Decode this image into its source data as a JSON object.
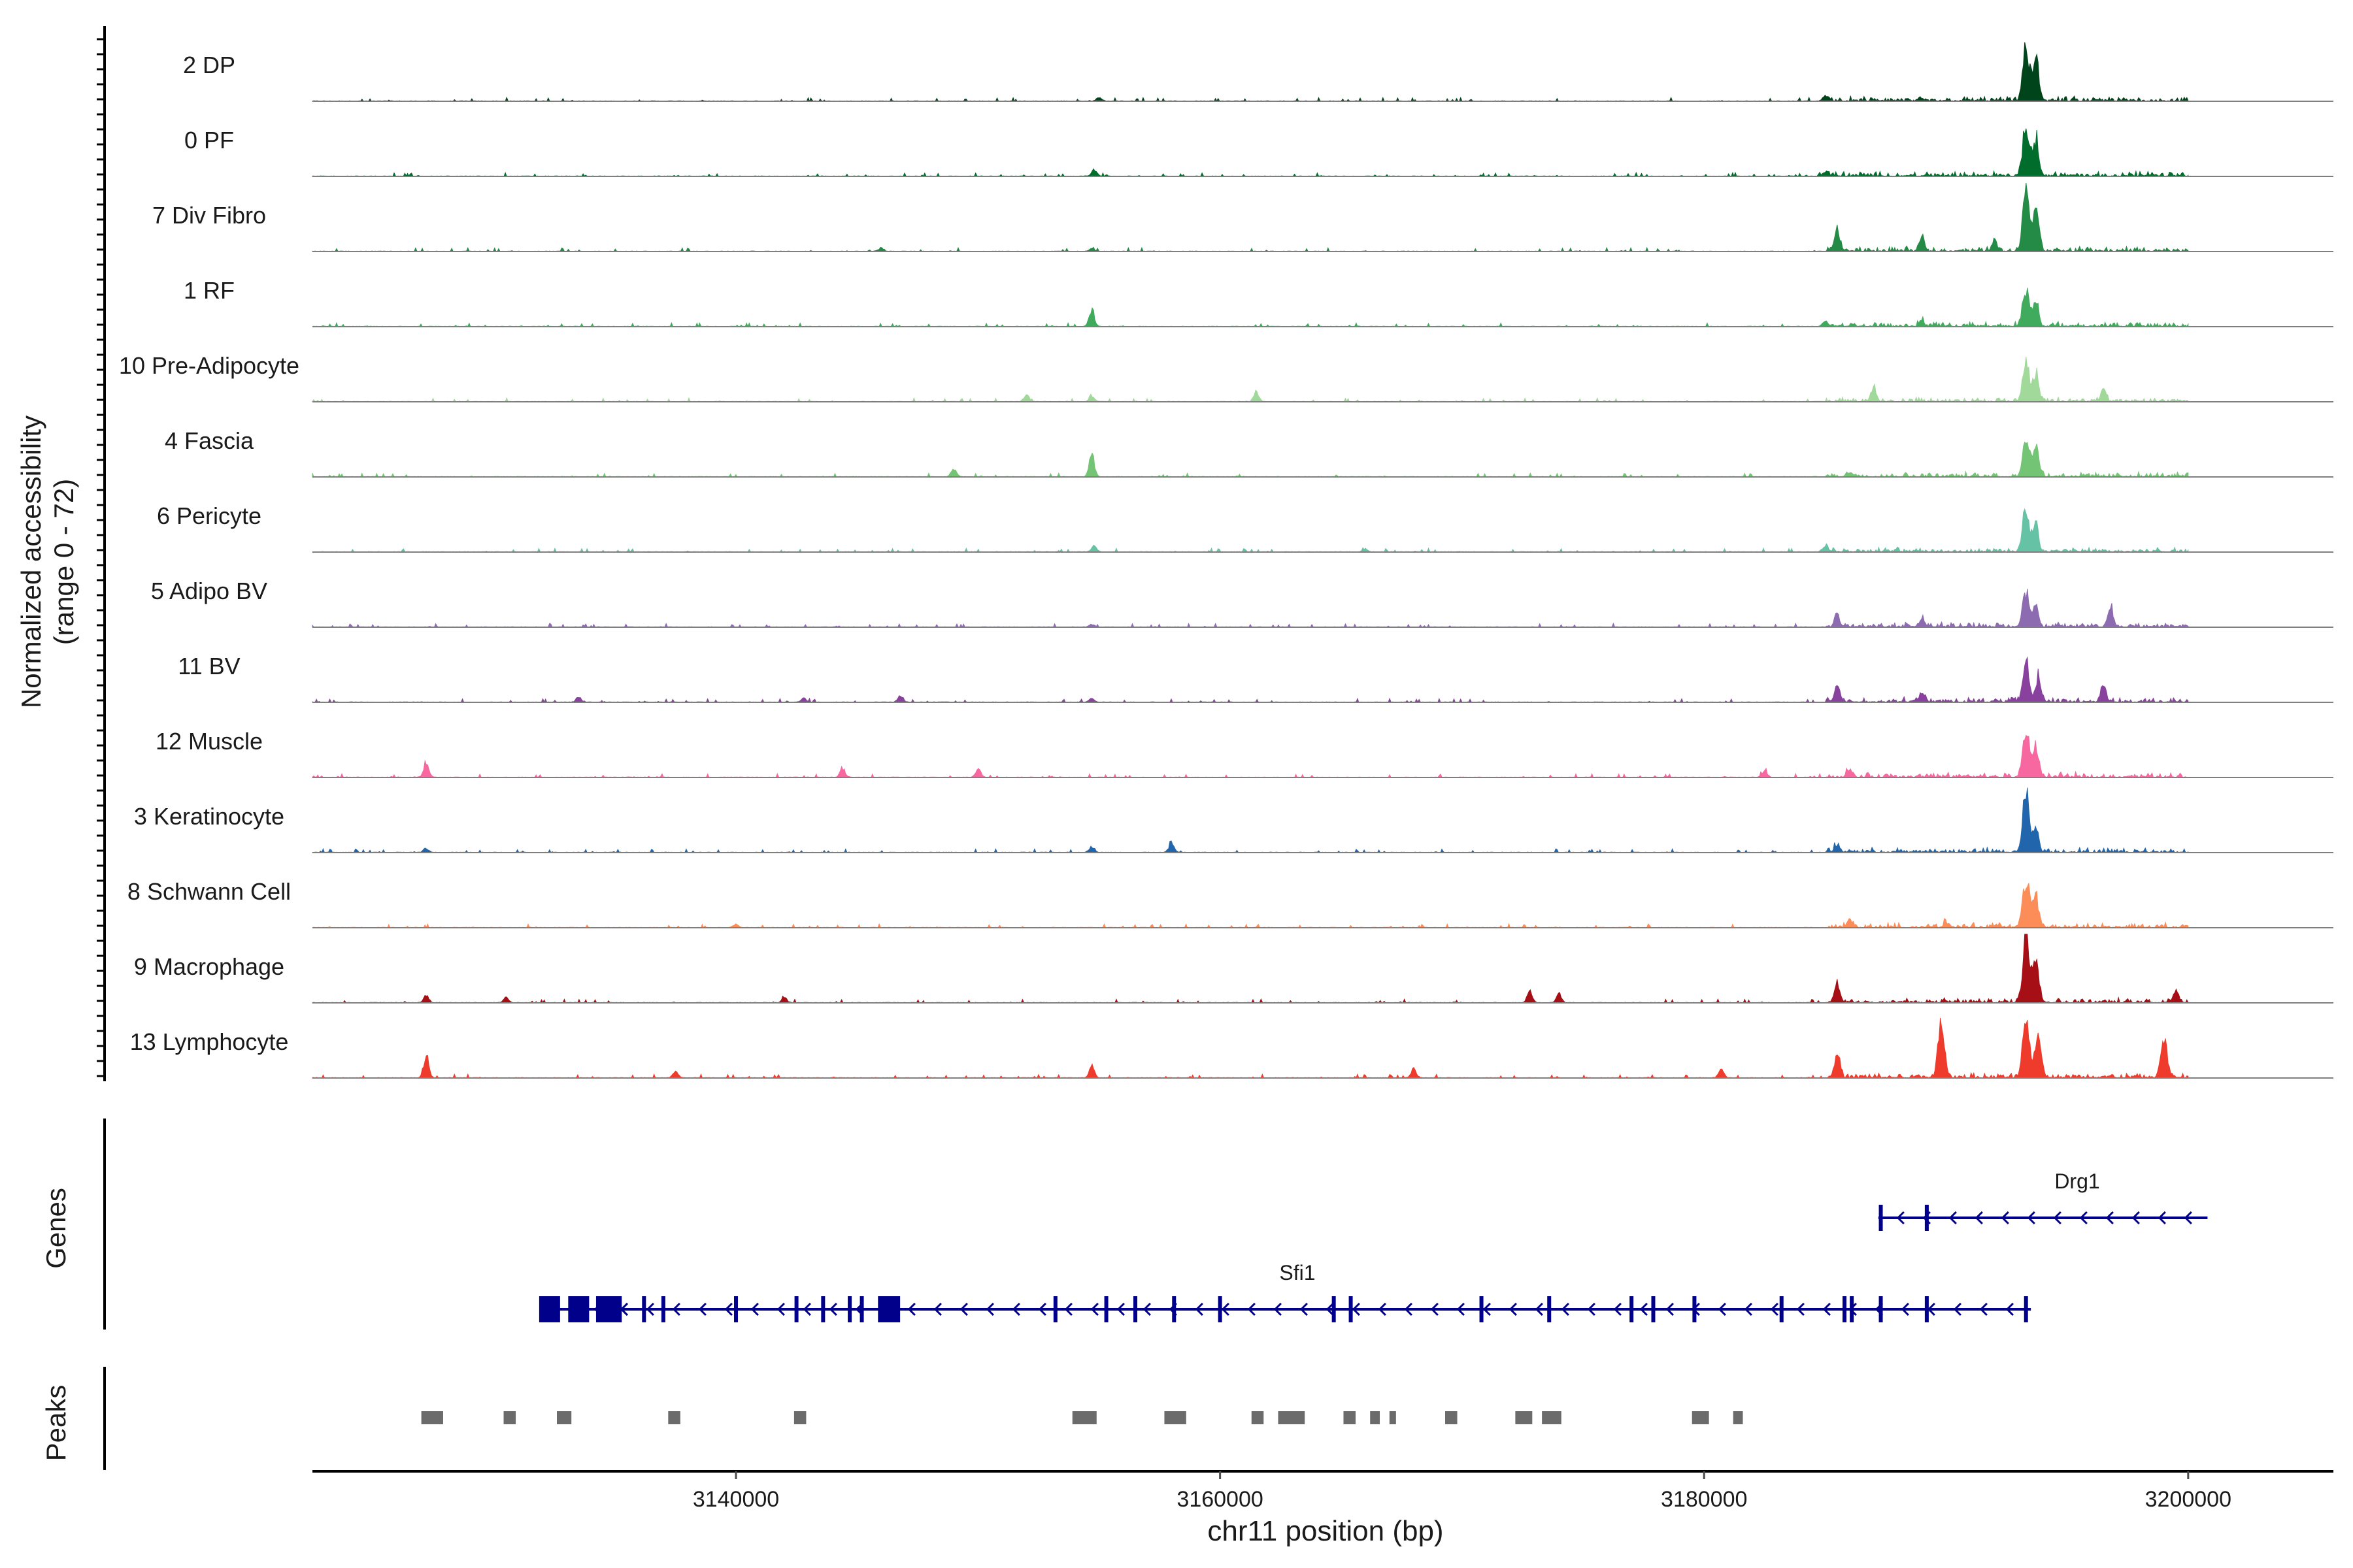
{
  "chart_data": {
    "type": "area",
    "title": "",
    "chromosome": "chr11",
    "xlabel": "chr11 position (bp)",
    "xlim": [
      3122500,
      3206000
    ],
    "x_ticks": [
      3140000,
      3160000,
      3180000,
      3200000
    ],
    "x_tick_labels": [
      "3140000",
      "3160000",
      "3180000",
      "3200000"
    ],
    "signal_start": 3122500,
    "signal_end": 3200000,
    "ylabel_line1": "Normalized accessibility",
    "ylabel_line2": "(range 0 - 72)",
    "ylim": [
      0,
      72
    ],
    "tracks": [
      {
        "name": "2 DP",
        "color": "#00441b",
        "peaks": [
          [
            3193300,
            55
          ],
          [
            3193700,
            45
          ],
          [
            3185000,
            5
          ],
          [
            3155000,
            4
          ]
        ]
      },
      {
        "name": "0 PF",
        "color": "#006d2c",
        "peaks": [
          [
            3193300,
            55
          ],
          [
            3193700,
            40
          ],
          [
            3154800,
            6
          ],
          [
            3185000,
            5
          ]
        ]
      },
      {
        "name": "7 Div Fibro",
        "color": "#238b45",
        "peaks": [
          [
            3193300,
            72
          ],
          [
            3193700,
            45
          ],
          [
            3185500,
            22
          ],
          [
            3189000,
            14
          ],
          [
            3192000,
            12
          ],
          [
            3146000,
            4
          ],
          [
            3154700,
            3
          ]
        ]
      },
      {
        "name": "1 RF",
        "color": "#41ab5d",
        "peaks": [
          [
            3193300,
            40
          ],
          [
            3193700,
            28
          ],
          [
            3154700,
            18
          ],
          [
            3185000,
            6
          ],
          [
            3189000,
            5
          ]
        ]
      },
      {
        "name": "10 Pre-Adipocyte",
        "color": "#a1d99b",
        "peaks": [
          [
            3193300,
            45
          ],
          [
            3193700,
            30
          ],
          [
            3187000,
            14
          ],
          [
            3196500,
            12
          ],
          [
            3161500,
            10
          ],
          [
            3152000,
            7
          ],
          [
            3154700,
            6
          ]
        ]
      },
      {
        "name": "4 Fascia",
        "color": "#74c476",
        "peaks": [
          [
            3193300,
            42
          ],
          [
            3193700,
            32
          ],
          [
            3154700,
            24
          ],
          [
            3149000,
            7
          ],
          [
            3186000,
            5
          ]
        ]
      },
      {
        "name": "6 Pericyte",
        "color": "#66c2a4",
        "peaks": [
          [
            3193300,
            48
          ],
          [
            3193700,
            30
          ],
          [
            3185000,
            7
          ],
          [
            3154800,
            6
          ],
          [
            3166000,
            3
          ]
        ]
      },
      {
        "name": "5 Adipo BV",
        "color": "#8c6bb1",
        "peaks": [
          [
            3193300,
            38
          ],
          [
            3193700,
            22
          ],
          [
            3185500,
            12
          ],
          [
            3196800,
            20
          ],
          [
            3189000,
            9
          ],
          [
            3154700,
            3
          ]
        ]
      },
      {
        "name": "11 BV",
        "color": "#88419d",
        "peaks": [
          [
            3193300,
            44
          ],
          [
            3193800,
            28
          ],
          [
            3185500,
            16
          ],
          [
            3196500,
            18
          ],
          [
            3189000,
            10
          ],
          [
            3146800,
            7
          ],
          [
            3133500,
            5
          ],
          [
            3142800,
            4
          ],
          [
            3154700,
            4
          ]
        ]
      },
      {
        "name": "12 Muscle",
        "color": "#f768a1",
        "peaks": [
          [
            3193300,
            48
          ],
          [
            3193700,
            32
          ],
          [
            3127200,
            16
          ],
          [
            3144400,
            10
          ],
          [
            3150000,
            9
          ],
          [
            3186000,
            8
          ],
          [
            3182500,
            6
          ]
        ]
      },
      {
        "name": "3 Keratinocyte",
        "color": "#2166ac",
        "peaks": [
          [
            3193300,
            62
          ],
          [
            3193700,
            28
          ],
          [
            3158000,
            10
          ],
          [
            3154700,
            6
          ],
          [
            3185500,
            8
          ],
          [
            3127200,
            4
          ]
        ]
      },
      {
        "name": "8 Schwann Cell",
        "color": "#fc8d59",
        "peaks": [
          [
            3193300,
            52
          ],
          [
            3193700,
            32
          ],
          [
            3186000,
            7
          ],
          [
            3190000,
            5
          ],
          [
            3140000,
            3
          ]
        ]
      },
      {
        "name": "9 Macrophage",
        "color": "#a50f15",
        "peaks": [
          [
            3193300,
            72
          ],
          [
            3193700,
            52
          ],
          [
            3185500,
            18
          ],
          [
            3172800,
            12
          ],
          [
            3174000,
            9
          ],
          [
            3199500,
            14
          ],
          [
            3127200,
            7
          ],
          [
            3130500,
            5
          ],
          [
            3142000,
            5
          ]
        ]
      },
      {
        "name": "13 Lymphocyte",
        "color": "#ef3b2c",
        "peaks": [
          [
            3193300,
            72
          ],
          [
            3193800,
            48
          ],
          [
            3189800,
            56
          ],
          [
            3185500,
            28
          ],
          [
            3199000,
            40
          ],
          [
            3127200,
            22
          ],
          [
            3154700,
            12
          ],
          [
            3168000,
            10
          ],
          [
            3180700,
            9
          ],
          [
            3137500,
            7
          ]
        ]
      }
    ],
    "genes_label": "Genes",
    "genes": [
      {
        "name": "Drg1",
        "start": 3187200,
        "end": 3200800,
        "strand": "-",
        "row": 0,
        "exons": [
          3187300,
          3189200
        ]
      },
      {
        "name": "Sfi1",
        "start": 3132300,
        "end": 3193500,
        "strand": "-",
        "row": 1,
        "exons": [
          3132300,
          3133400,
          3134300,
          3135200,
          3136200,
          3137000,
          3140000,
          3142500,
          3143600,
          3144700,
          3145200,
          3146700,
          3153200,
          3155300,
          3156500,
          3158100,
          3160000,
          3164700,
          3165400,
          3170800,
          3173600,
          3177000,
          3177900,
          3179600,
          3183200,
          3185800,
          3186100,
          3187300,
          3189200,
          3193300
        ]
      },
      {
        "name": "",
        "start": 3132300,
        "end": 3136000,
        "strand": "-",
        "row": 1,
        "exons": [
          3132300,
          3133500,
          3134700
        ]
      },
      {
        "name": "",
        "start": 3146200,
        "end": 3147000,
        "strand": "-",
        "row": 1,
        "exons": [
          3146300
        ]
      }
    ],
    "peaks_label": "Peaks",
    "peak_regions": [
      [
        3127000,
        3127900
      ],
      [
        3130400,
        3130900
      ],
      [
        3132600,
        3133200
      ],
      [
        3137200,
        3137700
      ],
      [
        3142400,
        3142900
      ],
      [
        3153900,
        3154900
      ],
      [
        3157700,
        3158600
      ],
      [
        3161300,
        3161800
      ],
      [
        3162400,
        3163500
      ],
      [
        3165100,
        3165600
      ],
      [
        3166200,
        3166600
      ],
      [
        3167000,
        3167200
      ],
      [
        3169300,
        3169800
      ],
      [
        3172200,
        3172900
      ],
      [
        3173300,
        3174100
      ],
      [
        3179500,
        3180200
      ],
      [
        3181200,
        3181600
      ]
    ]
  }
}
